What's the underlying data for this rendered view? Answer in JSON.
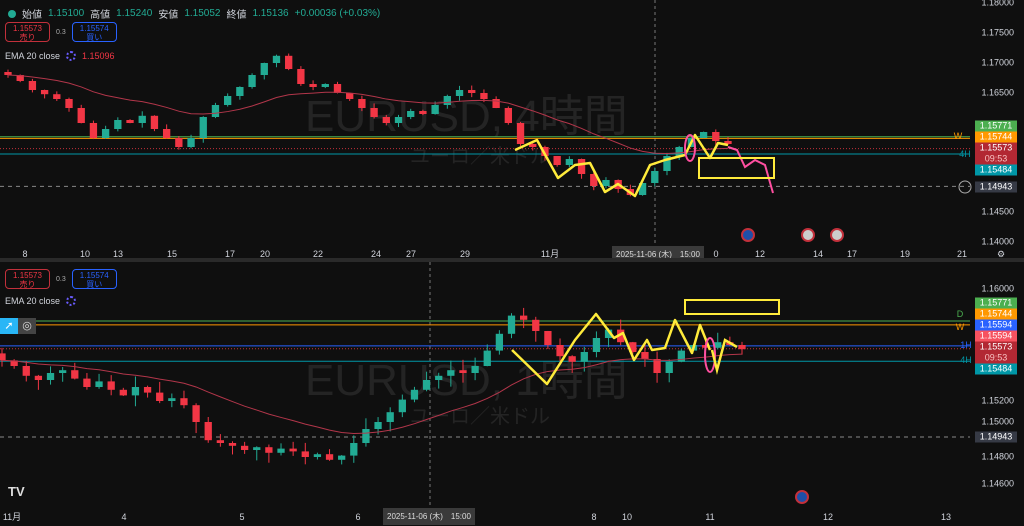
{
  "symbol_watermark_4h": "EURUSD, 4時間",
  "symbol_watermark_1h": "EURUSD, 1時間",
  "symbol_subtitle": "ユーロ／米ドル",
  "ohlc": {
    "open_label": "始値",
    "open": "1.15100",
    "high_label": "高値",
    "high": "1.15240",
    "low_label": "安値",
    "low": "1.15052",
    "close_label": "終値",
    "close": "1.15136",
    "change": "+0.00036 (+0.03%)"
  },
  "trade": {
    "sell_price": "1.15573",
    "sell_label": "売り",
    "spread": "0.3",
    "buy_price": "1.15574",
    "buy_label": "買い"
  },
  "indicator": {
    "name": "EMA 20 close",
    "value_4h": "1.15096"
  },
  "colors": {
    "up": "#22ab94",
    "down": "#f23645",
    "ema": "#b2364a",
    "annotation_yellow": "#ffeb3b",
    "annotation_pink": "#ff4fa0"
  },
  "top": {
    "y_ticks": [
      "1.18000",
      "1.17500",
      "1.17000",
      "1.16500",
      "1.14500",
      "1.14000"
    ],
    "price_tags": [
      {
        "v": "1.15771",
        "c": "#4caf50"
      },
      {
        "v": "1.15744",
        "c": "#ff9800"
      },
      {
        "v": "1.15573",
        "c": "#b22833"
      },
      {
        "v": "1.15484",
        "c": "#0097a7"
      },
      {
        "v": "1.14943",
        "c": "#363a45"
      }
    ],
    "countdown": "09:53",
    "line_labels": {
      "w": "W",
      "h4": "4H"
    },
    "x_labels": [
      "8",
      "10",
      "13",
      "15",
      "17",
      "20",
      "22",
      "24",
      "27",
      "29",
      "11月",
      "0",
      "12",
      "14",
      "17",
      "19",
      "21"
    ],
    "crosshair_time": "2025-11-06 (木)　15:00"
  },
  "bottom": {
    "y_ticks": [
      "1.16000",
      "1.15200",
      "1.15000",
      "1.14800",
      "1.14600"
    ],
    "price_tags": [
      {
        "v": "1.15771",
        "c": "#4caf50"
      },
      {
        "v": "1.15744",
        "c": "#ff9800"
      },
      {
        "v": "1.15594",
        "c": "#2962ff"
      },
      {
        "v": "1.15594",
        "c": "#f7525f"
      },
      {
        "v": "1.15573",
        "c": "#b22833"
      },
      {
        "v": "1.15484",
        "c": "#0097a7"
      },
      {
        "v": "1.14943",
        "c": "#363a45"
      }
    ],
    "countdown": "09:53",
    "line_labels": {
      "d": "D",
      "w": "W",
      "h1": "1H",
      "h4": "4H"
    },
    "x_labels": [
      "11月",
      "4",
      "5",
      "6",
      "8",
      "10",
      "11",
      "12",
      "13"
    ],
    "crosshair_time": "2025-11-06 (木)　15:00"
  },
  "chart_data": [
    {
      "type": "candlestick",
      "timeframe": "4H",
      "ylim": [
        1.14,
        1.18
      ],
      "ema_period": 20,
      "close": [
        1.168,
        1.167,
        1.1655,
        1.1648,
        1.164,
        1.1625,
        1.16,
        1.1575,
        1.159,
        1.1605,
        1.16,
        1.1612,
        1.159,
        1.1575,
        1.156,
        1.1575,
        1.161,
        1.163,
        1.1645,
        1.166,
        1.168,
        1.17,
        1.1712,
        1.169,
        1.1665,
        1.166,
        1.1665,
        1.165,
        1.164,
        1.1625,
        1.161,
        1.16,
        1.161,
        1.162,
        1.1615,
        1.163,
        1.1645,
        1.1655,
        1.165,
        1.164,
        1.1625,
        1.16,
        1.1565,
        1.156,
        1.1545,
        1.153,
        1.154,
        1.1515,
        1.1495,
        1.1505,
        1.149,
        1.148,
        1.15,
        1.152,
        1.1545,
        1.156,
        1.1575,
        1.1585,
        1.157,
        1.1565
      ],
      "levels": [
        1.15771,
        1.15744,
        1.15573,
        1.15484,
        1.14943
      ]
    },
    {
      "type": "candlestick",
      "timeframe": "1H",
      "ylim": [
        1.145,
        1.161
      ],
      "ema_period": 20,
      "close": [
        1.1549,
        1.1545,
        1.1538,
        1.1535,
        1.154,
        1.1542,
        1.1536,
        1.153,
        1.1534,
        1.1528,
        1.1524,
        1.153,
        1.1526,
        1.152,
        1.1522,
        1.1517,
        1.1505,
        1.1492,
        1.149,
        1.1488,
        1.1485,
        1.1487,
        1.1483,
        1.1486,
        1.1484,
        1.148,
        1.1482,
        1.1478,
        1.1481,
        1.149,
        1.15,
        1.1505,
        1.1512,
        1.1521,
        1.1528,
        1.1535,
        1.1538,
        1.1542,
        1.154,
        1.1545,
        1.1556,
        1.1568,
        1.1581,
        1.1578,
        1.157,
        1.156,
        1.1552,
        1.1548,
        1.1555,
        1.1565,
        1.1571,
        1.1562,
        1.1555,
        1.155,
        1.154,
        1.1548,
        1.1556,
        1.156,
        1.1558,
        1.1562,
        1.156,
        1.1557
      ],
      "levels": [
        1.15771,
        1.15744,
        1.15594,
        1.15573,
        1.15484,
        1.14943
      ]
    }
  ]
}
